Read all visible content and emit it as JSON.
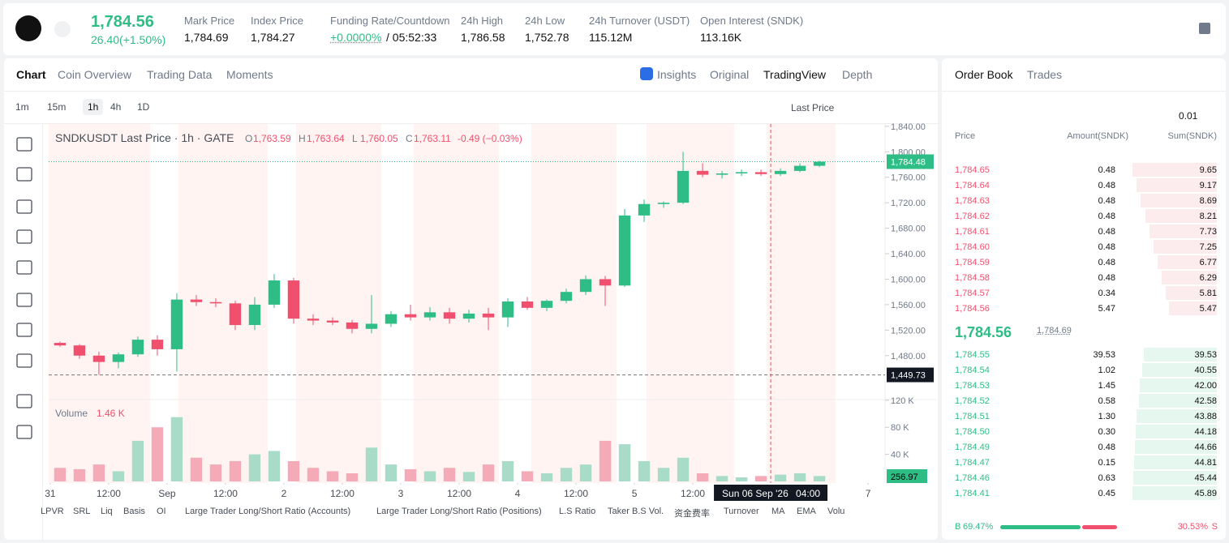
{
  "header": {
    "price": "1,784.56",
    "change": "26.40(+1.50%)",
    "stats": [
      {
        "label": "Mark Price",
        "value": "1,784.69"
      },
      {
        "label": "Index Price",
        "value": "1,784.27"
      },
      {
        "label": "Funding Rate/Countdown",
        "value": "+0.0000%",
        "extra": "/ 05:52:33"
      },
      {
        "label": "24h High",
        "value": "1,786.58"
      },
      {
        "label": "24h Low",
        "value": "1,752.78"
      },
      {
        "label": "24h Turnover (USDT)",
        "value": "115.12M"
      },
      {
        "label": "Open Interest (SNDK)",
        "value": "113.16K"
      }
    ]
  },
  "chart_tabs": [
    "Chart",
    "Coin Overview",
    "Trading Data",
    "Moments"
  ],
  "view_tabs": [
    "Insights",
    "Original",
    "TradingView",
    "Depth"
  ],
  "intervals": [
    "1m",
    "15m",
    "1h",
    "4h",
    "1D"
  ],
  "price_source": "Last Price",
  "legend": {
    "title": "SNDKUSDT Last Price · 1h · GATE",
    "ohlc": [
      {
        "label": "O",
        "value": "1,763.59"
      },
      {
        "label": "H",
        "value": "1,763.64"
      },
      {
        "label": "L",
        "value": "1,760.05"
      },
      {
        "label": "C",
        "value": "1,763.11"
      }
    ],
    "change": "-0.49 (−0.03%)"
  },
  "volume_legend": {
    "label": "Volume",
    "value": "1.46 K"
  },
  "indicators": [
    "LPVR",
    "SRL",
    "Liq",
    "Basis",
    "OI",
    "Large Trader Long/Short Ratio (Accounts)",
    "Large Trader Long/Short Ratio (Positions)",
    "L.S Ratio",
    "Taker B.S Vol.",
    "资金费率",
    "Turnover",
    "MA",
    "EMA",
    "Volu"
  ],
  "chart_data": {
    "type": "candlestick",
    "open": [
      1500,
      1496,
      1480,
      1470,
      1482,
      1505,
      1490,
      1568,
      1564,
      1562,
      1528,
      1560,
      1598,
      1538,
      1535,
      1532,
      1522,
      1530,
      1545,
      1540,
      1548,
      1538,
      1546,
      1540,
      1565,
      1555,
      1566,
      1580,
      1600,
      1590,
      1700,
      1718,
      1720,
      1770,
      1764,
      1766,
      1768,
      1765,
      1770,
      1778
    ],
    "high": [
      1502,
      1498,
      1486,
      1485,
      1510,
      1512,
      1578,
      1575,
      1570,
      1566,
      1572,
      1608,
      1602,
      1545,
      1540,
      1536,
      1575,
      1550,
      1560,
      1556,
      1555,
      1552,
      1555,
      1570,
      1572,
      1568,
      1585,
      1606,
      1605,
      1710,
      1725,
      1722,
      1800,
      1782,
      1770,
      1772,
      1772,
      1774,
      1782,
      1786
    ],
    "low": [
      1494,
      1475,
      1450,
      1460,
      1478,
      1480,
      1455,
      1558,
      1556,
      1520,
      1520,
      1555,
      1530,
      1528,
      1528,
      1515,
      1515,
      1525,
      1535,
      1535,
      1530,
      1532,
      1520,
      1525,
      1552,
      1550,
      1562,
      1575,
      1558,
      1588,
      1690,
      1712,
      1718,
      1760,
      1758,
      1762,
      1762,
      1762,
      1768,
      1776
    ],
    "close": [
      1496,
      1480,
      1470,
      1482,
      1505,
      1490,
      1568,
      1564,
      1562,
      1528,
      1560,
      1598,
      1538,
      1535,
      1532,
      1522,
      1530,
      1545,
      1540,
      1548,
      1538,
      1546,
      1540,
      1565,
      1555,
      1566,
      1580,
      1600,
      1590,
      1700,
      1718,
      1720,
      1770,
      1764,
      1766,
      1768,
      1765,
      1770,
      1778,
      1784.48
    ],
    "up_color": "#2ebd85",
    "down_color": "#f0506e",
    "ylim": [
      1411,
      1850
    ],
    "yticks": [
      {
        "value": 1480,
        "label": "1,480.00"
      },
      {
        "value": 1520,
        "label": "1,520.00"
      },
      {
        "value": 1560,
        "label": "1,560.00"
      },
      {
        "value": 1600,
        "label": "1,600.00"
      },
      {
        "value": 1640,
        "label": "1,640.00"
      },
      {
        "value": 1680,
        "label": "1,680.00"
      },
      {
        "value": 1720,
        "label": "1,720.00"
      },
      {
        "value": 1760,
        "label": "1,760.00"
      },
      {
        "value": 1800,
        "label": "1,800.00"
      },
      {
        "value": 1840,
        "label": "1,840.00"
      }
    ],
    "xlim": [
      -0.08,
      42.83
    ],
    "xticks": [
      {
        "value": 0,
        "label": "31"
      },
      {
        "value": 3,
        "label": "12:00"
      },
      {
        "value": 6,
        "label": "Sep"
      },
      {
        "value": 9,
        "label": "12:00"
      },
      {
        "value": 12,
        "label": "2"
      },
      {
        "value": 15,
        "label": "12:00"
      },
      {
        "value": 18,
        "label": "3"
      },
      {
        "value": 21,
        "label": "12:00"
      },
      {
        "value": 24,
        "label": "4"
      },
      {
        "value": 27,
        "label": "12:00"
      },
      {
        "value": 30,
        "label": "5"
      },
      {
        "value": 33,
        "label": "12:00"
      },
      {
        "value": 42,
        "label": "7"
      }
    ],
    "volume": [
      20,
      18,
      25,
      15,
      60,
      80,
      95,
      35,
      25,
      30,
      40,
      45,
      30,
      20,
      15,
      12,
      50,
      25,
      18,
      15,
      20,
      14,
      25,
      30,
      15,
      12,
      20,
      25,
      60,
      55,
      30,
      20,
      35,
      12,
      8,
      6,
      8,
      10,
      12,
      8
    ],
    "volume_ylim": [
      0,
      121
    ],
    "volume_yticks": [
      {
        "value": 40,
        "label": "40 K"
      },
      {
        "value": 80,
        "label": "80 K"
      },
      {
        "value": 120,
        "label": "120 K"
      }
    ],
    "last_price": {
      "value": 1784.48,
      "label": "1,784.48"
    },
    "last_volume_label": "256.97",
    "crosshair": {
      "price": 1449.73,
      "price_label": "1,449.73",
      "x": 37,
      "date_label": "Sun 06 Sep '26",
      "time_label": "04:00"
    }
  },
  "order_book": {
    "tabs": [
      "Order Book",
      "Trades"
    ],
    "tick_size": "0.01",
    "columns": [
      "Price",
      "Amount(SNDK)",
      "Sum(SNDK)"
    ],
    "asks": [
      {
        "price": "1,784.65",
        "amount": "0.48",
        "sum": "9.65"
      },
      {
        "price": "1,784.64",
        "amount": "0.48",
        "sum": "9.17"
      },
      {
        "price": "1,784.63",
        "amount": "0.48",
        "sum": "8.69"
      },
      {
        "price": "1,784.62",
        "amount": "0.48",
        "sum": "8.21"
      },
      {
        "price": "1,784.61",
        "amount": "0.48",
        "sum": "7.73"
      },
      {
        "price": "1,784.60",
        "amount": "0.48",
        "sum": "7.25"
      },
      {
        "price": "1,784.59",
        "amount": "0.48",
        "sum": "6.77"
      },
      {
        "price": "1,784.58",
        "amount": "0.48",
        "sum": "6.29"
      },
      {
        "price": "1,784.57",
        "amount": "0.34",
        "sum": "5.81"
      },
      {
        "price": "1,784.56",
        "amount": "5.47",
        "sum": "5.47"
      }
    ],
    "last_price": "1,784.56",
    "mark_price": "1,784.69",
    "bids": [
      {
        "price": "1,784.55",
        "amount": "39.53",
        "sum": "39.53"
      },
      {
        "price": "1,784.54",
        "amount": "1.02",
        "sum": "40.55"
      },
      {
        "price": "1,784.53",
        "amount": "1.45",
        "sum": "42.00"
      },
      {
        "price": "1,784.52",
        "amount": "0.58",
        "sum": "42.58"
      },
      {
        "price": "1,784.51",
        "amount": "1.30",
        "sum": "43.88"
      },
      {
        "price": "1,784.50",
        "amount": "0.30",
        "sum": "44.18"
      },
      {
        "price": "1,784.49",
        "amount": "0.48",
        "sum": "44.66"
      },
      {
        "price": "1,784.47",
        "amount": "0.15",
        "sum": "44.81"
      },
      {
        "price": "1,784.46",
        "amount": "0.63",
        "sum": "45.44"
      },
      {
        "price": "1,784.41",
        "amount": "0.45",
        "sum": "45.89"
      }
    ],
    "ratio": {
      "buy_label": "B",
      "buy": 69.47,
      "buy_text": "69.47%",
      "sell": 30.53,
      "sell_text": "30.53%",
      "sell_label": "S"
    }
  }
}
